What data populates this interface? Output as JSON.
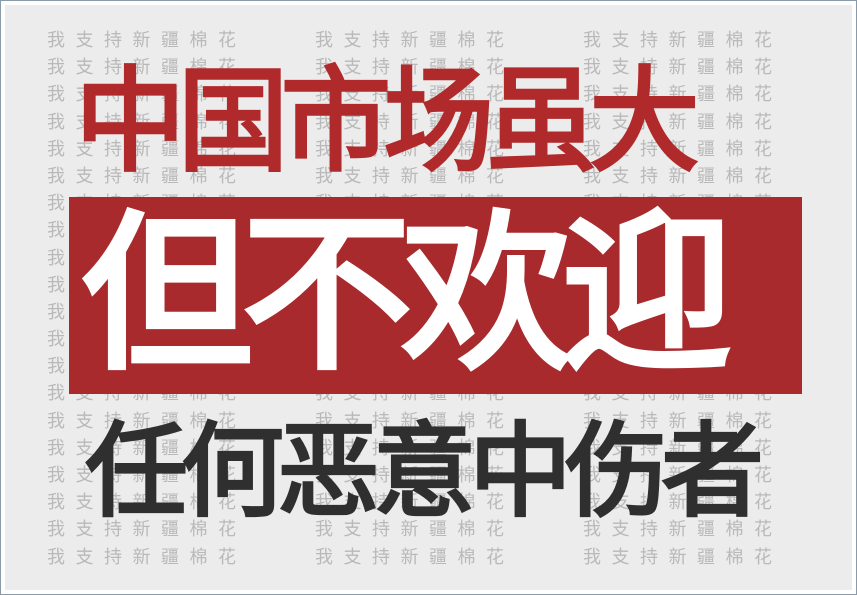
{
  "background": {
    "pattern_text": "我支持新疆棉花",
    "rows": 20,
    "groups_per_row": 3
  },
  "headline": {
    "top": "中国市场虽大",
    "middle": "但不欢迎",
    "bottom": "任何恶意中伤者"
  },
  "colors": {
    "top_text": "#b02a2c",
    "band": "#a82a2c",
    "middle_text": "#ffffff",
    "bottom_text": "#2f2f2f",
    "pattern_text": "#b9b9b9",
    "poster_bg": "#ececec"
  }
}
